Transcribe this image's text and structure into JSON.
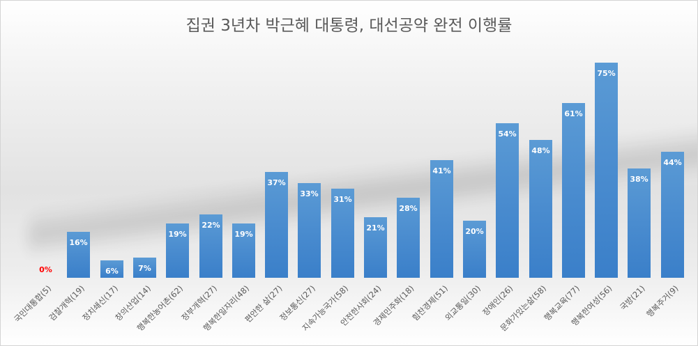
{
  "chart_data": {
    "type": "bar",
    "title": "집권 3년차 박근혜 대통령, 대선공약 완전 이행률",
    "xlabel": "",
    "ylabel": "",
    "ylim": [
      0,
      80
    ],
    "grid": false,
    "legend": "none",
    "categories": [
      "국민대통합(5)",
      "검찰개혁(19)",
      "정치쇄신(17)",
      "창의산업(14)",
      "행복한농어촌(62)",
      "정부개혁(27)",
      "행복한일자리(48)",
      "편안한 삶(27)",
      "정보통신(27)",
      "지속가능국가(58)",
      "안전한사회(24)",
      "경제민주화(18)",
      "힘찬경제(51)",
      "외교통일(30)",
      "장애인(26)",
      "문화가있는삶(58)",
      "행복교육(77)",
      "행복한여성(56)",
      "국방(21)",
      "행복주거(9)"
    ],
    "values": [
      0,
      16,
      6,
      7,
      19,
      22,
      19,
      37,
      33,
      31,
      21,
      28,
      41,
      20,
      54,
      48,
      61,
      75,
      38,
      44
    ],
    "value_labels": [
      "0%",
      "16%",
      "6%",
      "7%",
      "19%",
      "22%",
      "19%",
      "37%",
      "33%",
      "31%",
      "21%",
      "28%",
      "41%",
      "20%",
      "54%",
      "48%",
      "61%",
      "75%",
      "38%",
      "44%"
    ],
    "unit": "%",
    "colors": {
      "bar": "#5b9bd5",
      "bar_dark": "#3a7fc9",
      "label": "#ffffff",
      "zero_label": "#ff0000",
      "title": "#595959",
      "axis_text": "#595959"
    }
  }
}
